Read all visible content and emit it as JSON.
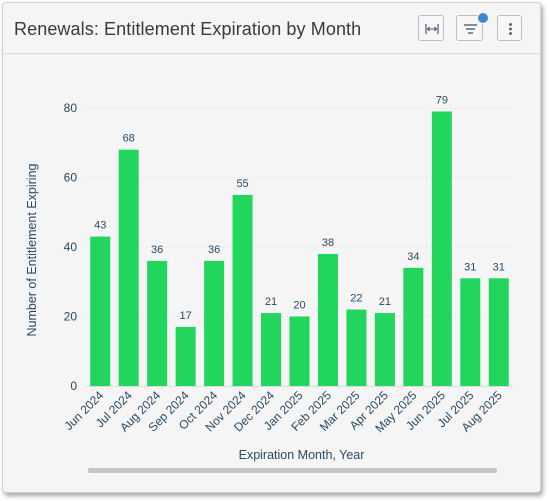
{
  "header": {
    "title": "Renewals: Entitlement Expiration by Month",
    "buttons": [
      {
        "name": "fit-width-button",
        "icon": "fit-width-icon"
      },
      {
        "name": "filter-button",
        "icon": "filter-icon",
        "has_indicator": true
      },
      {
        "name": "more-options-button",
        "icon": "more-vertical-icon"
      }
    ]
  },
  "colors": {
    "bar": "#22d65d",
    "accent": "#3f86d6",
    "axis_text": "#2a4a63",
    "grid": "#e8e8e8"
  },
  "chart_data": {
    "type": "bar",
    "categories": [
      "Jun 2024",
      "Jul 2024",
      "Aug 2024",
      "Sep 2024",
      "Oct 2024",
      "Nov 2024",
      "Dec 2024",
      "Jan 2025",
      "Feb 2025",
      "Mar 2025",
      "Apr 2025",
      "May 2025",
      "Jun 2025",
      "Jul 2025",
      "Aug 2025"
    ],
    "values": [
      43,
      68,
      36,
      17,
      36,
      55,
      21,
      20,
      38,
      22,
      21,
      34,
      79,
      31,
      31
    ],
    "xlabel": "Expiration Month, Year",
    "ylabel": "Number of Entitlement Expiring",
    "ylim": [
      0,
      80
    ],
    "yticks": [
      0,
      20,
      40,
      60,
      80
    ],
    "grid": true,
    "data_labels": true
  }
}
